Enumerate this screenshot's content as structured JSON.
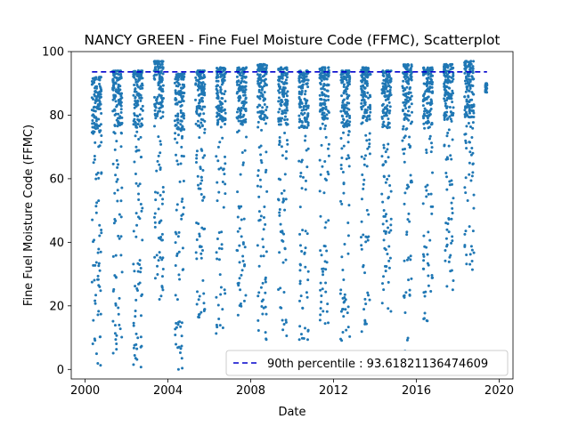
{
  "chart_data": {
    "type": "scatter",
    "title": "NANCY GREEN - Fine Fuel Moisture Code (FFMC), Scatterplot",
    "xlabel": "Date",
    "ylabel": "Fine Fuel Moisture Code (FFMC)",
    "xlim": [
      "1999-05-01",
      "2020-09-01"
    ],
    "ylim": [
      -3,
      100
    ],
    "x_ticks": [
      "2000",
      "2004",
      "2008",
      "2012",
      "2016",
      "2020"
    ],
    "y_ticks": [
      0,
      20,
      40,
      60,
      80,
      100
    ],
    "grid": false,
    "legend_position": "lower right",
    "percentile_line": {
      "label": "90th percentile : 93.61821136474609",
      "value": 93.61821136474609,
      "color": "#0000cc",
      "style": "dashed"
    },
    "point_color": "#1f77b4",
    "seasons": [
      {
        "year": 2000,
        "start": "2000-05-01",
        "end": "2000-10-15",
        "ffmc_range": [
          0,
          92
        ]
      },
      {
        "year": 2001,
        "start": "2001-05-01",
        "end": "2001-10-15",
        "ffmc_range": [
          4,
          94
        ]
      },
      {
        "year": 2002,
        "start": "2002-05-01",
        "end": "2002-10-15",
        "ffmc_range": [
          0,
          94
        ]
      },
      {
        "year": 2003,
        "start": "2003-05-01",
        "end": "2003-10-15",
        "ffmc_range": [
          20,
          97
        ]
      },
      {
        "year": 2004,
        "start": "2004-05-01",
        "end": "2004-10-15",
        "ffmc_range": [
          0,
          93
        ]
      },
      {
        "year": 2005,
        "start": "2005-05-01",
        "end": "2005-10-15",
        "ffmc_range": [
          16,
          94
        ]
      },
      {
        "year": 2006,
        "start": "2006-05-01",
        "end": "2006-10-15",
        "ffmc_range": [
          9,
          95
        ]
      },
      {
        "year": 2007,
        "start": "2007-05-01",
        "end": "2007-10-15",
        "ffmc_range": [
          17,
          95
        ]
      },
      {
        "year": 2008,
        "start": "2008-05-01",
        "end": "2008-10-15",
        "ffmc_range": [
          9,
          96
        ]
      },
      {
        "year": 2009,
        "start": "2009-05-01",
        "end": "2009-10-15",
        "ffmc_range": [
          10,
          95
        ]
      },
      {
        "year": 2010,
        "start": "2010-05-01",
        "end": "2010-10-15",
        "ffmc_range": [
          9,
          94
        ]
      },
      {
        "year": 2011,
        "start": "2011-05-01",
        "end": "2011-10-15",
        "ffmc_range": [
          14,
          95
        ]
      },
      {
        "year": 2012,
        "start": "2012-05-01",
        "end": "2012-10-15",
        "ffmc_range": [
          7,
          94
        ]
      },
      {
        "year": 2013,
        "start": "2013-05-01",
        "end": "2013-10-15",
        "ffmc_range": [
          11,
          95
        ]
      },
      {
        "year": 2014,
        "start": "2014-05-01",
        "end": "2014-10-15",
        "ffmc_range": [
          16,
          94
        ]
      },
      {
        "year": 2015,
        "start": "2015-05-01",
        "end": "2015-10-15",
        "ffmc_range": [
          4,
          96
        ]
      },
      {
        "year": 2016,
        "start": "2016-05-01",
        "end": "2016-10-15",
        "ffmc_range": [
          14,
          95
        ]
      },
      {
        "year": 2017,
        "start": "2017-05-01",
        "end": "2017-10-15",
        "ffmc_range": [
          25,
          96
        ]
      },
      {
        "year": 2018,
        "start": "2018-05-01",
        "end": "2018-10-15",
        "ffmc_range": [
          31,
          97
        ]
      },
      {
        "year": 2019,
        "start": "2019-05-01",
        "end": "2019-06-01",
        "ffmc_range": [
          87,
          90
        ]
      }
    ]
  }
}
